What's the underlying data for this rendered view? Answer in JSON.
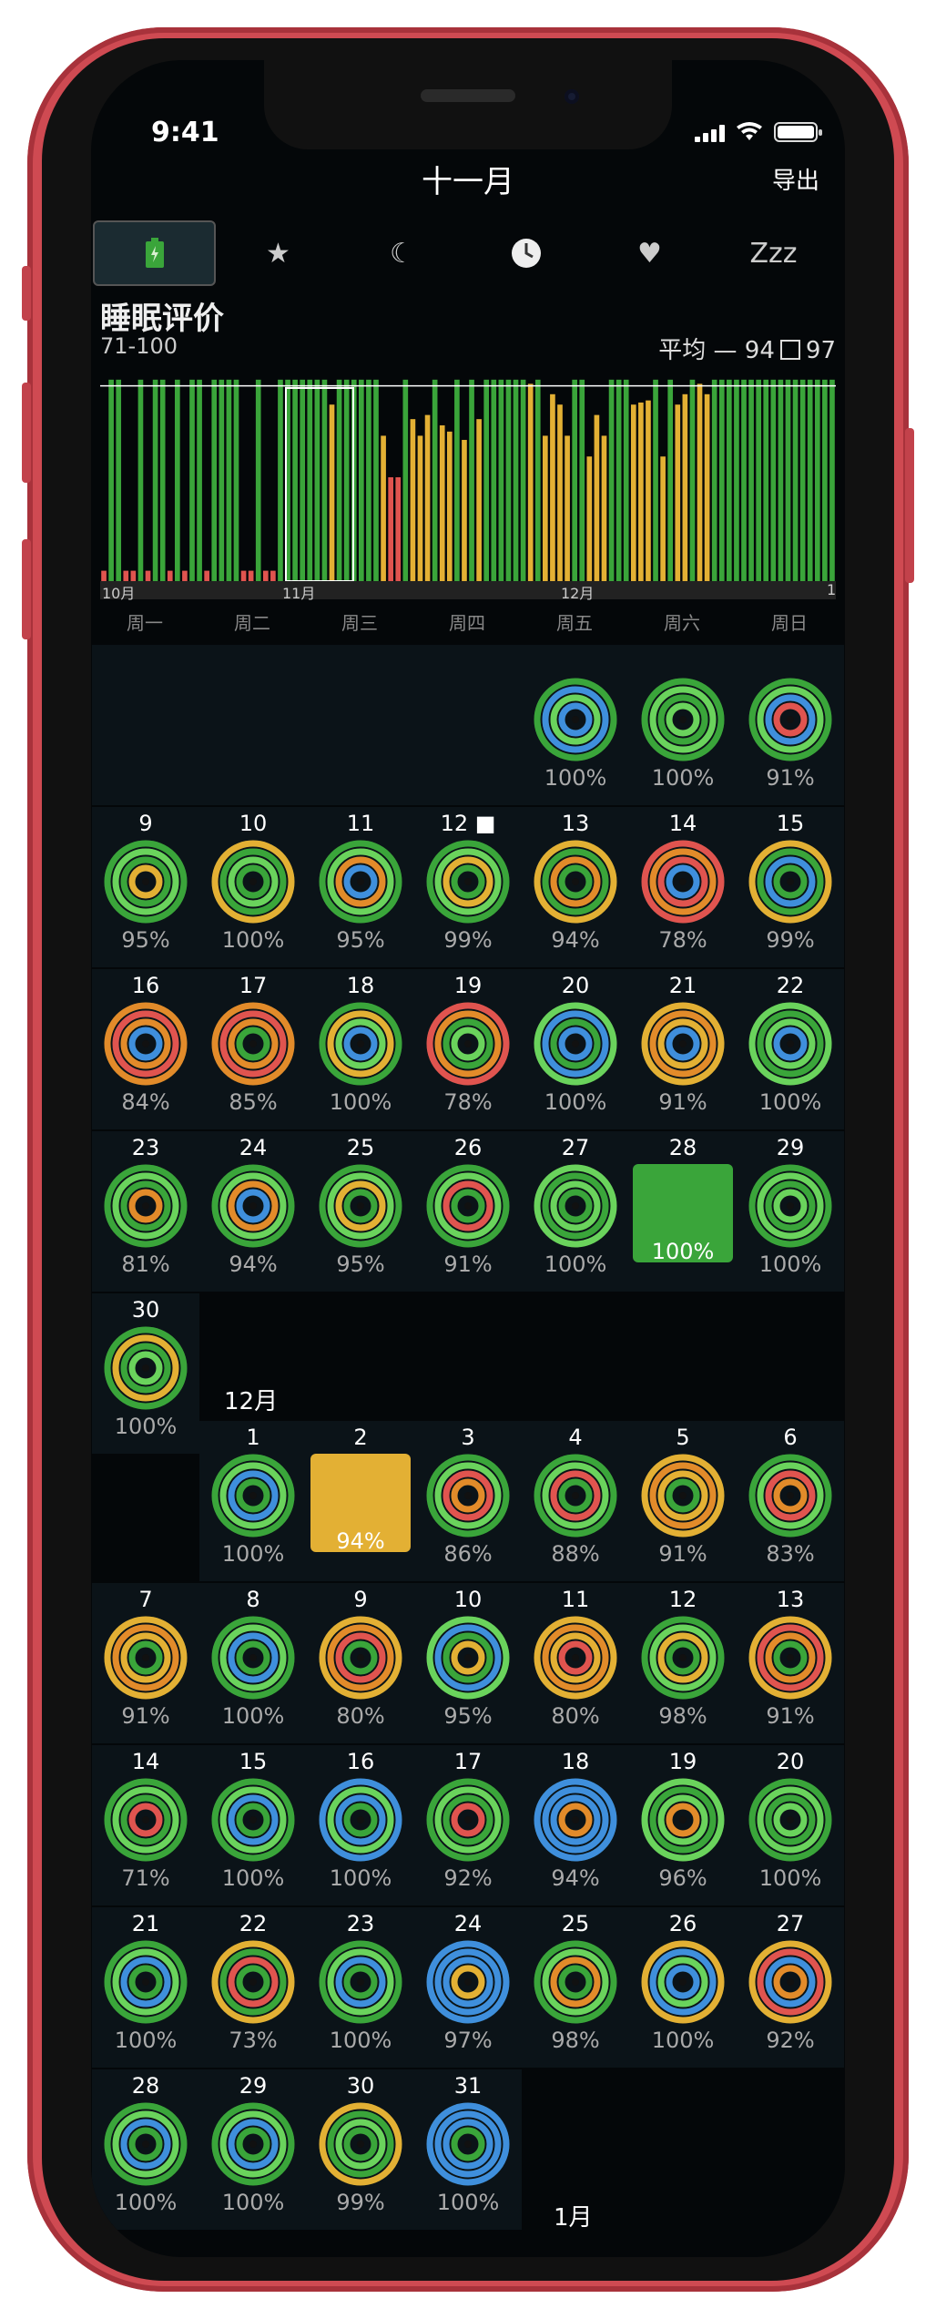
{
  "status": {
    "time": "9:41"
  },
  "header": {
    "title": "十一月",
    "export": "导出"
  },
  "tabs": [
    {
      "icon": "battery-icon",
      "glyph": "🔋"
    },
    {
      "icon": "star-icon",
      "glyph": "★"
    },
    {
      "icon": "moon-icon",
      "glyph": "☾"
    },
    {
      "icon": "clock-icon",
      "glyph": "🕐"
    },
    {
      "icon": "heart-icon",
      "glyph": "♥"
    },
    {
      "icon": "zzz-icon",
      "label": "Zzz"
    }
  ],
  "metric": {
    "title": "睡眠评价",
    "range": "71-100",
    "avg_prefix": "平均 — 94",
    "avg_best": "97"
  },
  "chart_data": {
    "type": "bar",
    "ylim": [
      0,
      100
    ],
    "values": [
      5,
      97,
      97,
      5,
      5,
      97,
      5,
      97,
      97,
      5,
      97,
      5,
      97,
      97,
      5,
      97,
      97,
      97,
      97,
      5,
      5,
      97,
      5,
      5,
      97,
      97,
      97,
      97,
      97,
      97,
      97,
      85,
      97,
      97,
      97,
      97,
      97,
      97,
      70,
      50,
      50,
      97,
      78,
      70,
      80,
      97,
      75,
      72,
      97,
      68,
      97,
      78,
      97,
      97,
      97,
      97,
      97,
      97,
      95,
      97,
      70,
      90,
      85,
      70,
      97,
      97,
      60,
      80,
      70,
      97,
      97,
      97,
      85,
      86,
      87,
      97,
      60,
      97,
      85,
      90,
      97,
      95,
      90,
      97,
      97,
      97,
      97,
      97,
      97,
      97,
      97,
      97,
      97,
      97,
      97,
      97,
      97,
      97,
      97,
      97
    ],
    "x_ticks": [
      "10月",
      "11月",
      "12月",
      "1"
    ],
    "avg_line": 94
  },
  "weekdays": [
    "周一",
    "周二",
    "周三",
    "周四",
    "周五",
    "周六",
    "周日"
  ],
  "colors": {
    "green": "#3aa53a",
    "yellow": "#e3b034",
    "orange": "#e28b2a",
    "red": "#e0544f",
    "blue": "#3f8fdc",
    "lightgreen": "#6ad35c"
  },
  "months": {
    "dec": "12月",
    "jan": "1月"
  },
  "november": [
    {
      "day": "",
      "pct": "100%",
      "rings": [
        "#3aa53a",
        "#3f8fdc",
        "#6ad35c",
        "#3f8fdc"
      ],
      "col": 4,
      "row": 0
    },
    {
      "day": "",
      "pct": "100%",
      "rings": [
        "#3aa53a",
        "#6ad35c",
        "#3aa53a",
        "#6ad35c"
      ],
      "col": 5,
      "row": 0
    },
    {
      "day": "",
      "pct": "91%",
      "rings": [
        "#3aa53a",
        "#6ad35c",
        "#3f8fdc",
        "#e0544f"
      ],
      "col": 6,
      "row": 0
    },
    {
      "day": "9",
      "pct": "95%",
      "rings": [
        "#3aa53a",
        "#6ad35c",
        "#3aa53a",
        "#e3b034"
      ],
      "col": 0,
      "row": 1
    },
    {
      "day": "10",
      "pct": "100%",
      "rings": [
        "#e3b034",
        "#3aa53a",
        "#6ad35c",
        "#3aa53a"
      ],
      "col": 1,
      "row": 1
    },
    {
      "day": "11",
      "pct": "95%",
      "rings": [
        "#3aa53a",
        "#6ad35c",
        "#e28b2a",
        "#3f8fdc"
      ],
      "col": 2,
      "row": 1
    },
    {
      "day": "12 ■",
      "pct": "99%",
      "rings": [
        "#3aa53a",
        "#6ad35c",
        "#e3b034",
        "#3aa53a"
      ],
      "col": 3,
      "row": 1
    },
    {
      "day": "13",
      "pct": "94%",
      "rings": [
        "#e3b034",
        "#3aa53a",
        "#e28b2a",
        "#3aa53a"
      ],
      "col": 4,
      "row": 1
    },
    {
      "day": "14",
      "pct": "78%",
      "rings": [
        "#e0544f",
        "#e28b2a",
        "#e0544f",
        "#3f8fdc"
      ],
      "col": 5,
      "row": 1
    },
    {
      "day": "15",
      "pct": "99%",
      "rings": [
        "#e3b034",
        "#3aa53a",
        "#3f8fdc",
        "#3aa53a"
      ],
      "col": 6,
      "row": 1
    },
    {
      "day": "16",
      "pct": "84%",
      "rings": [
        "#e28b2a",
        "#e0544f",
        "#e28b2a",
        "#3f8fdc"
      ],
      "col": 0,
      "row": 2
    },
    {
      "day": "17",
      "pct": "85%",
      "rings": [
        "#e28b2a",
        "#e0544f",
        "#e28b2a",
        "#3aa53a"
      ],
      "col": 1,
      "row": 2
    },
    {
      "day": "18",
      "pct": "100%",
      "rings": [
        "#3aa53a",
        "#e3b034",
        "#6ad35c",
        "#3f8fdc"
      ],
      "col": 2,
      "row": 2
    },
    {
      "day": "19",
      "pct": "78%",
      "rings": [
        "#e0544f",
        "#e28b2a",
        "#3aa53a",
        "#6ad35c"
      ],
      "col": 3,
      "row": 2
    },
    {
      "day": "20",
      "pct": "100%",
      "rings": [
        "#6ad35c",
        "#3f8fdc",
        "#3aa53a",
        "#3f8fdc"
      ],
      "col": 4,
      "row": 2
    },
    {
      "day": "21",
      "pct": "91%",
      "rings": [
        "#e3b034",
        "#e28b2a",
        "#e3b034",
        "#3f8fdc"
      ],
      "col": 5,
      "row": 2
    },
    {
      "day": "22",
      "pct": "100%",
      "rings": [
        "#6ad35c",
        "#3aa53a",
        "#6ad35c",
        "#3f8fdc"
      ],
      "col": 6,
      "row": 2
    },
    {
      "day": "23",
      "pct": "81%",
      "rings": [
        "#3aa53a",
        "#6ad35c",
        "#3aa53a",
        "#e28b2a"
      ],
      "col": 0,
      "row": 3
    },
    {
      "day": "24",
      "pct": "94%",
      "rings": [
        "#3aa53a",
        "#6ad35c",
        "#e28b2a",
        "#3f8fdc"
      ],
      "col": 1,
      "row": 3
    },
    {
      "day": "25",
      "pct": "95%",
      "rings": [
        "#3aa53a",
        "#6ad35c",
        "#e3b034",
        "#3aa53a"
      ],
      "col": 2,
      "row": 3
    },
    {
      "day": "26",
      "pct": "91%",
      "rings": [
        "#3aa53a",
        "#6ad35c",
        "#e0544f",
        "#3aa53a"
      ],
      "col": 3,
      "row": 3
    },
    {
      "day": "27",
      "pct": "100%",
      "rings": [
        "#6ad35c",
        "#3aa53a",
        "#6ad35c",
        "#3aa53a"
      ],
      "col": 4,
      "row": 3
    },
    {
      "day": "28",
      "pct": "100%",
      "solid": "#3aa53a",
      "col": 5,
      "row": 3
    },
    {
      "day": "29",
      "pct": "100%",
      "rings": [
        "#3aa53a",
        "#6ad35c",
        "#3aa53a",
        "#6ad35c"
      ],
      "col": 6,
      "row": 3
    },
    {
      "day": "30",
      "pct": "100%",
      "rings": [
        "#3aa53a",
        "#e3b034",
        "#3aa53a",
        "#6ad35c"
      ],
      "col": 0,
      "row": 4
    }
  ],
  "december": [
    {
      "day": "1",
      "pct": "100%",
      "rings": [
        "#3aa53a",
        "#6ad35c",
        "#3f8fdc",
        "#3aa53a"
      ],
      "col": 1,
      "row": 0
    },
    {
      "day": "2",
      "pct": "94%",
      "solid": "#e3b034",
      "col": 2,
      "row": 0
    },
    {
      "day": "3",
      "pct": "86%",
      "rings": [
        "#3aa53a",
        "#6ad35c",
        "#e0544f",
        "#e28b2a"
      ],
      "col": 3,
      "row": 0
    },
    {
      "day": "4",
      "pct": "88%",
      "rings": [
        "#3aa53a",
        "#6ad35c",
        "#e0544f",
        "#3aa53a"
      ],
      "col": 4,
      "row": 0
    },
    {
      "day": "5",
      "pct": "91%",
      "rings": [
        "#e3b034",
        "#e28b2a",
        "#e3b034",
        "#3aa53a"
      ],
      "col": 5,
      "row": 0
    },
    {
      "day": "6",
      "pct": "83%",
      "rings": [
        "#3aa53a",
        "#6ad35c",
        "#e0544f",
        "#e28b2a"
      ],
      "col": 6,
      "row": 0
    },
    {
      "day": "7",
      "pct": "91%",
      "rings": [
        "#e3b034",
        "#e28b2a",
        "#e3b034",
        "#3aa53a"
      ],
      "col": 0,
      "row": 1
    },
    {
      "day": "8",
      "pct": "100%",
      "rings": [
        "#3aa53a",
        "#6ad35c",
        "#3f8fdc",
        "#3aa53a"
      ],
      "col": 1,
      "row": 1
    },
    {
      "day": "9",
      "pct": "80%",
      "rings": [
        "#e3b034",
        "#e28b2a",
        "#e0544f",
        "#3aa53a"
      ],
      "col": 2,
      "row": 1
    },
    {
      "day": "10",
      "pct": "95%",
      "rings": [
        "#6ad35c",
        "#3f8fdc",
        "#3aa53a",
        "#e3b034"
      ],
      "col": 3,
      "row": 1
    },
    {
      "day": "11",
      "pct": "80%",
      "rings": [
        "#e3b034",
        "#e28b2a",
        "#e3b034",
        "#e0544f"
      ],
      "col": 4,
      "row": 1
    },
    {
      "day": "12",
      "pct": "98%",
      "rings": [
        "#3aa53a",
        "#6ad35c",
        "#e3b034",
        "#3aa53a"
      ],
      "col": 5,
      "row": 1
    },
    {
      "day": "13",
      "pct": "91%",
      "rings": [
        "#e3b034",
        "#e0544f",
        "#e28b2a",
        "#3aa53a"
      ],
      "col": 6,
      "row": 1
    },
    {
      "day": "14",
      "pct": "71%",
      "rings": [
        "#3aa53a",
        "#6ad35c",
        "#3aa53a",
        "#e0544f"
      ],
      "col": 0,
      "row": 2
    },
    {
      "day": "15",
      "pct": "100%",
      "rings": [
        "#3aa53a",
        "#6ad35c",
        "#3f8fdc",
        "#3aa53a"
      ],
      "col": 1,
      "row": 2
    },
    {
      "day": "16",
      "pct": "100%",
      "rings": [
        "#3f8fdc",
        "#6ad35c",
        "#3f8fdc",
        "#3aa53a"
      ],
      "col": 2,
      "row": 2
    },
    {
      "day": "17",
      "pct": "92%",
      "rings": [
        "#3aa53a",
        "#6ad35c",
        "#3aa53a",
        "#e0544f"
      ],
      "col": 3,
      "row": 2
    },
    {
      "day": "18",
      "pct": "94%",
      "rings": [
        "#3f8fdc",
        "#3f8fdc",
        "#3f8fdc",
        "#e28b2a"
      ],
      "col": 4,
      "row": 2
    },
    {
      "day": "19",
      "pct": "96%",
      "rings": [
        "#6ad35c",
        "#3aa53a",
        "#6ad35c",
        "#e28b2a"
      ],
      "col": 5,
      "row": 2
    },
    {
      "day": "20",
      "pct": "100%",
      "rings": [
        "#3aa53a",
        "#6ad35c",
        "#3aa53a",
        "#6ad35c"
      ],
      "col": 6,
      "row": 2
    },
    {
      "day": "21",
      "pct": "100%",
      "rings": [
        "#3aa53a",
        "#6ad35c",
        "#3f8fdc",
        "#3aa53a"
      ],
      "col": 0,
      "row": 3
    },
    {
      "day": "22",
      "pct": "73%",
      "rings": [
        "#e3b034",
        "#3aa53a",
        "#e0544f",
        "#3aa53a"
      ],
      "col": 1,
      "row": 3
    },
    {
      "day": "23",
      "pct": "100%",
      "rings": [
        "#3aa53a",
        "#6ad35c",
        "#3f8fdc",
        "#3aa53a"
      ],
      "col": 2,
      "row": 3
    },
    {
      "day": "24",
      "pct": "97%",
      "rings": [
        "#3f8fdc",
        "#3f8fdc",
        "#3f8fdc",
        "#e3b034"
      ],
      "col": 3,
      "row": 3
    },
    {
      "day": "25",
      "pct": "98%",
      "rings": [
        "#3aa53a",
        "#6ad35c",
        "#e28b2a",
        "#3aa53a"
      ],
      "col": 4,
      "row": 3
    },
    {
      "day": "26",
      "pct": "100%",
      "rings": [
        "#e3b034",
        "#3f8fdc",
        "#6ad35c",
        "#3f8fdc"
      ],
      "col": 5,
      "row": 3
    },
    {
      "day": "27",
      "pct": "92%",
      "rings": [
        "#e3b034",
        "#e0544f",
        "#3f8fdc",
        "#e28b2a"
      ],
      "col": 6,
      "row": 3
    },
    {
      "day": "28",
      "pct": "100%",
      "rings": [
        "#3aa53a",
        "#6ad35c",
        "#3f8fdc",
        "#3aa53a"
      ],
      "col": 0,
      "row": 4
    },
    {
      "day": "29",
      "pct": "100%",
      "rings": [
        "#3aa53a",
        "#6ad35c",
        "#3f8fdc",
        "#3aa53a"
      ],
      "col": 1,
      "row": 4
    },
    {
      "day": "30",
      "pct": "99%",
      "rings": [
        "#e3b034",
        "#3aa53a",
        "#6ad35c",
        "#3aa53a"
      ],
      "col": 2,
      "row": 4
    },
    {
      "day": "31",
      "pct": "100%",
      "rings": [
        "#3f8fdc",
        "#3f8fdc",
        "#3f8fdc",
        "#3aa53a"
      ],
      "col": 3,
      "row": 4
    }
  ]
}
